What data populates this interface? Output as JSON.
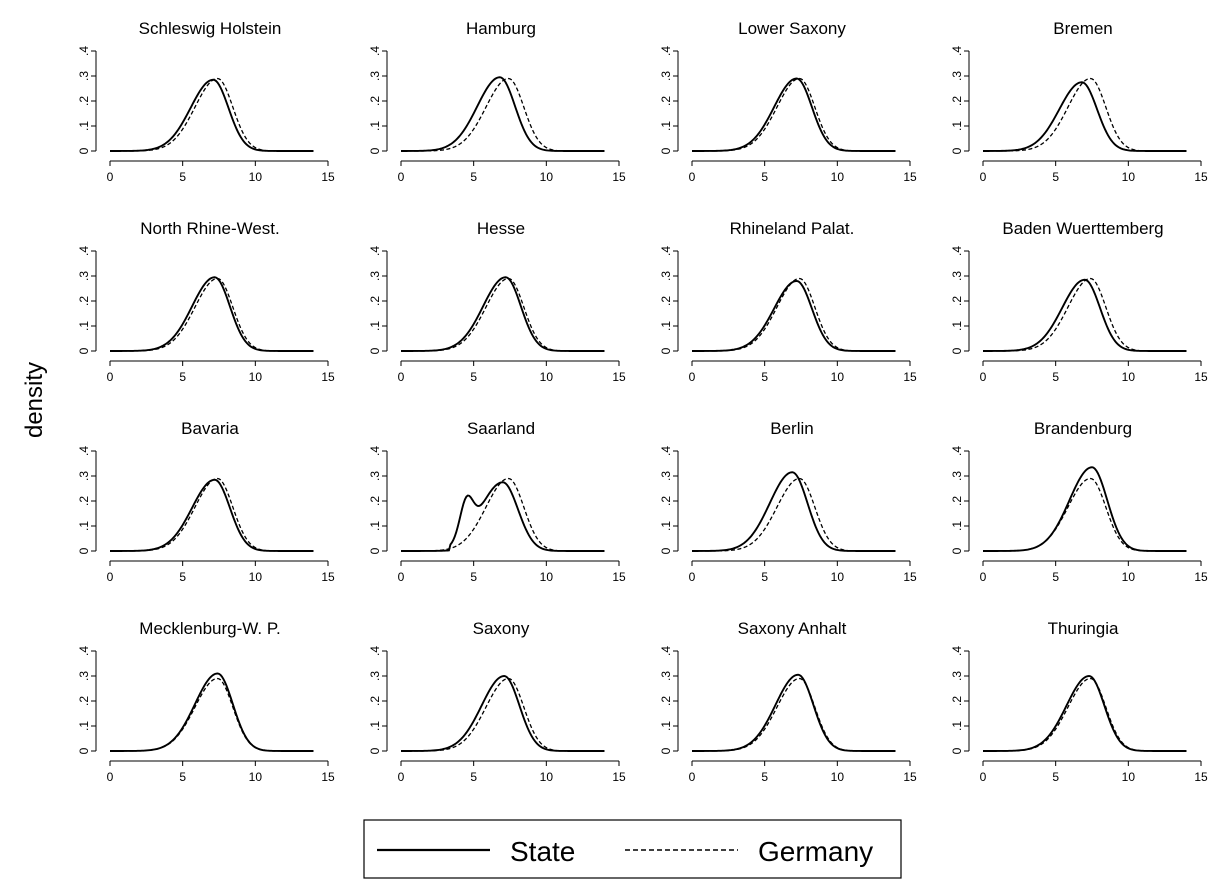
{
  "chart_data": {
    "type": "line",
    "ylabel": "density",
    "xlim": [
      0,
      15
    ],
    "ylim": [
      0,
      0.4
    ],
    "x_ticks": [
      "0",
      "5",
      "10",
      "15"
    ],
    "y_ticks": [
      "0",
      ".1",
      ".2",
      ".3",
      ".4"
    ],
    "series_names": [
      "State",
      "Germany"
    ],
    "reference_germany": {
      "peak_x": 7.4,
      "peak_y": 0.29
    },
    "panels": [
      {
        "title": "Schleswig Holstein",
        "state": {
          "peak_x": 7.1,
          "peak_y": 0.285
        }
      },
      {
        "title": "Hamburg",
        "state": {
          "peak_x": 6.8,
          "peak_y": 0.295
        }
      },
      {
        "title": "Lower Saxony",
        "state": {
          "peak_x": 7.2,
          "peak_y": 0.29
        }
      },
      {
        "title": "Bremen",
        "state": {
          "peak_x": 6.8,
          "peak_y": 0.275
        }
      },
      {
        "title": "North Rhine-West.",
        "state": {
          "peak_x": 7.2,
          "peak_y": 0.295
        }
      },
      {
        "title": "Hesse",
        "state": {
          "peak_x": 7.2,
          "peak_y": 0.295
        }
      },
      {
        "title": "Rhineland Palat.",
        "state": {
          "peak_x": 7.2,
          "peak_y": 0.28
        }
      },
      {
        "title": "Baden Wuerttemberg",
        "state": {
          "peak_x": 7.0,
          "peak_y": 0.285
        }
      },
      {
        "title": "Bavaria",
        "state": {
          "peak_x": 7.2,
          "peak_y": 0.285
        }
      },
      {
        "title": "Saarland",
        "state": {
          "peak_x": 7.0,
          "peak_y": 0.275,
          "bump_x": 4.5,
          "bump_y": 0.19
        }
      },
      {
        "title": "Berlin",
        "state": {
          "peak_x": 6.9,
          "peak_y": 0.315
        }
      },
      {
        "title": "Brandenburg",
        "state": {
          "peak_x": 7.5,
          "peak_y": 0.335
        }
      },
      {
        "title": "Mecklenburg-W. P.",
        "state": {
          "peak_x": 7.4,
          "peak_y": 0.31
        }
      },
      {
        "title": "Saxony",
        "state": {
          "peak_x": 7.1,
          "peak_y": 0.3
        }
      },
      {
        "title": "Saxony Anhalt",
        "state": {
          "peak_x": 7.3,
          "peak_y": 0.305
        }
      },
      {
        "title": "Thuringia",
        "state": {
          "peak_x": 7.3,
          "peak_y": 0.3
        }
      }
    ],
    "legend": [
      {
        "label": "State",
        "style": "solid"
      },
      {
        "label": "Germany",
        "style": "dashed"
      }
    ]
  }
}
